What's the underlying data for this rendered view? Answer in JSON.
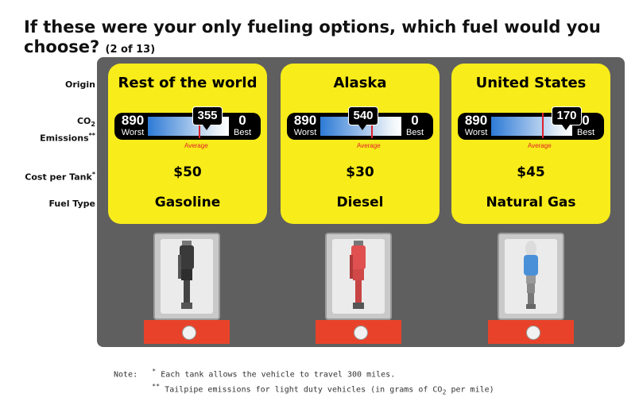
{
  "question": {
    "text": "If these were your only fueling options, which fuel would you choose?",
    "counter": "(2 of 13)"
  },
  "row_labels": {
    "origin": "Origin",
    "co2_line1": "CO",
    "co2_sub": "2",
    "co2_line2": "Emissions",
    "co2_sup": "**",
    "cost": "Cost per Tank",
    "cost_sup": "*",
    "fuel_type": "Fuel Type"
  },
  "gauge_common": {
    "worst_value": "890",
    "worst_label": "Worst",
    "best_value": "0",
    "best_label": "Best",
    "average_label": "Average"
  },
  "options": [
    {
      "origin": "Rest of the world",
      "emissions": "355",
      "cost": "$50",
      "fuel": "Gasoline",
      "nozzle": "gasoline-nozzle-icon"
    },
    {
      "origin": "Alaska",
      "emissions": "540",
      "cost": "$30",
      "fuel": "Diesel",
      "nozzle": "diesel-nozzle-icon"
    },
    {
      "origin": "United States",
      "emissions": "170",
      "cost": "$45",
      "fuel": "Natural Gas",
      "nozzle": "natural-gas-nozzle-icon"
    }
  ],
  "notes": {
    "label": "Note:",
    "line1_sup": "*",
    "line1": "Each tank allows the vehicle to travel 300 miles.",
    "line2_sup": "**",
    "line2": "Tailpipe emissions for light duty vehicles (in grams of CO",
    "line2_sub": "2",
    "line2_end": " per mile)"
  },
  "colors": {
    "card": "#f8ec1a",
    "panel": "#5f5f5f",
    "average": "#e0202a",
    "pump_base": "#e8432a",
    "diesel_nozzle": "#e05050",
    "gas_nozzle": "#3a3a3a",
    "cng_nozzle": "#4a90d9"
  }
}
